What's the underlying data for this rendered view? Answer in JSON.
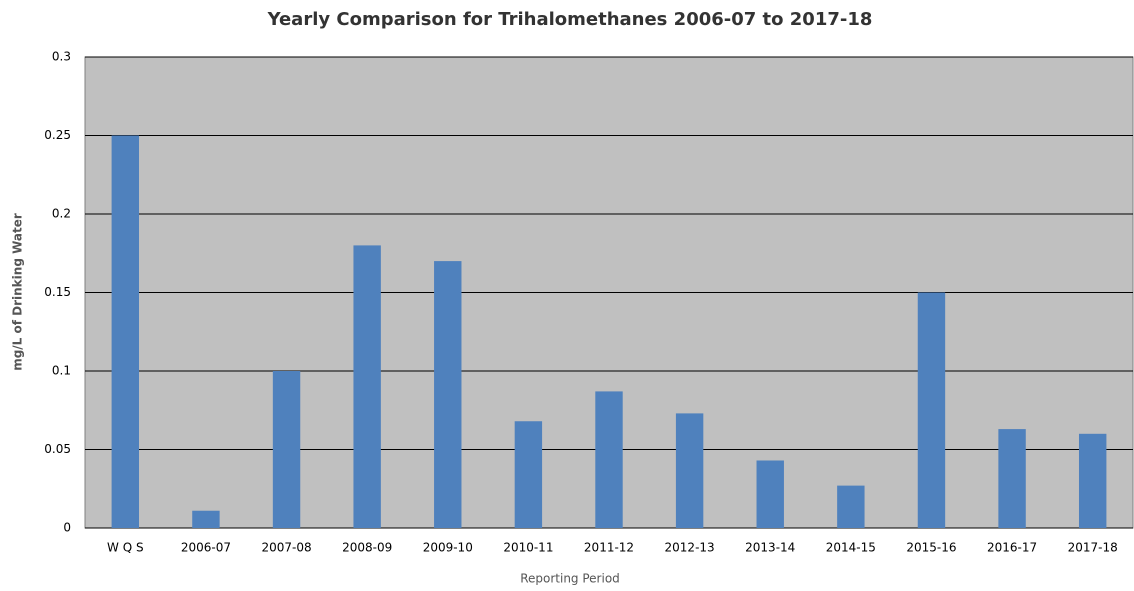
{
  "chart_data": {
    "type": "bar",
    "title": "Yearly Comparison for Trihalomethanes 2006-07 to 2017-18",
    "x_label": "Reporting Period",
    "y_label": "mg/L of Drinking Water",
    "categories": [
      "W Q S",
      "2006-07",
      "2007-08",
      "2008-09",
      "2009-10",
      "2010-11",
      "2011-12",
      "2012-13",
      "2013-14",
      "2014-15",
      "2015-16",
      "2016-17",
      "2017-18"
    ],
    "values": [
      0.25,
      0.011,
      0.1,
      0.18,
      0.17,
      0.068,
      0.087,
      0.073,
      0.043,
      0.027,
      0.15,
      0.063,
      0.06
    ],
    "color": "#4f81bd",
    "ylim": [
      0,
      0.3
    ],
    "yticks": [
      0,
      0.05,
      0.1,
      0.15,
      0.2,
      0.25,
      0.3
    ],
    "grid": true
  }
}
